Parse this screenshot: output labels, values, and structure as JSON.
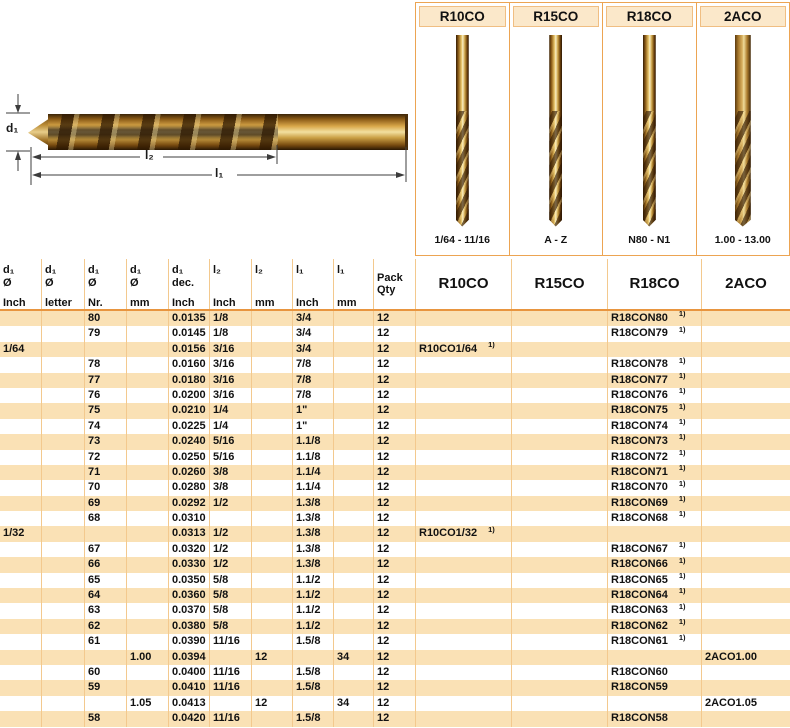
{
  "diagram": {
    "d1_label": "d₁",
    "l2_label": "l₂",
    "l1_label": "l₁"
  },
  "products": [
    {
      "name": "R10CO",
      "range": "1/64 - 11/16"
    },
    {
      "name": "R15CO",
      "range": "A - Z"
    },
    {
      "name": "R18CO",
      "range": "N80 - N1"
    },
    {
      "name": "2ACO",
      "range": "1.00 - 13.00"
    }
  ],
  "table": {
    "note_marker": "1)",
    "dim_headers": [
      {
        "lines": [
          "d₁",
          "Ø",
          "Inch"
        ]
      },
      {
        "lines": [
          "d₁",
          "Ø",
          "letter"
        ]
      },
      {
        "lines": [
          "d₁",
          "Ø",
          "Nr."
        ]
      },
      {
        "lines": [
          "d₁",
          "Ø",
          "mm"
        ]
      },
      {
        "lines": [
          "d₁",
          "dec.",
          "Inch"
        ]
      },
      {
        "lines": [
          "l₂",
          "",
          "Inch"
        ]
      },
      {
        "lines": [
          "l₂",
          "",
          "mm"
        ]
      },
      {
        "lines": [
          "l₁",
          "",
          "Inch"
        ]
      },
      {
        "lines": [
          "l₁",
          "",
          "mm"
        ]
      },
      {
        "lines": [
          "Pack",
          "Qty",
          ""
        ]
      }
    ],
    "product_headers": [
      "R10CO",
      "R15CO",
      "R18CO",
      "2ACO"
    ],
    "rows": [
      {
        "cells": [
          "",
          "",
          "80",
          "",
          "0.0135",
          "1/8",
          "",
          "3/4",
          "",
          "12",
          "",
          "",
          "R18CON80",
          ""
        ],
        "sup": 12
      },
      {
        "cells": [
          "",
          "",
          "79",
          "",
          "0.0145",
          "1/8",
          "",
          "3/4",
          "",
          "12",
          "",
          "",
          "R18CON79",
          ""
        ],
        "sup": 12
      },
      {
        "cells": [
          "1/64",
          "",
          "",
          "",
          "0.0156",
          "3/16",
          "",
          "3/4",
          "",
          "12",
          "R10CO1/64",
          "",
          "",
          ""
        ],
        "sup": 10
      },
      {
        "cells": [
          "",
          "",
          "78",
          "",
          "0.0160",
          "3/16",
          "",
          "7/8",
          "",
          "12",
          "",
          "",
          "R18CON78",
          ""
        ],
        "sup": 12
      },
      {
        "cells": [
          "",
          "",
          "77",
          "",
          "0.0180",
          "3/16",
          "",
          "7/8",
          "",
          "12",
          "",
          "",
          "R18CON77",
          ""
        ],
        "sup": 12
      },
      {
        "cells": [
          "",
          "",
          "76",
          "",
          "0.0200",
          "3/16",
          "",
          "7/8",
          "",
          "12",
          "",
          "",
          "R18CON76",
          ""
        ],
        "sup": 12
      },
      {
        "cells": [
          "",
          "",
          "75",
          "",
          "0.0210",
          "1/4",
          "",
          "1\"",
          "",
          "12",
          "",
          "",
          "R18CON75",
          ""
        ],
        "sup": 12
      },
      {
        "cells": [
          "",
          "",
          "74",
          "",
          "0.0225",
          "1/4",
          "",
          "1\"",
          "",
          "12",
          "",
          "",
          "R18CON74",
          ""
        ],
        "sup": 12
      },
      {
        "cells": [
          "",
          "",
          "73",
          "",
          "0.0240",
          "5/16",
          "",
          "1.1/8",
          "",
          "12",
          "",
          "",
          "R18CON73",
          ""
        ],
        "sup": 12
      },
      {
        "cells": [
          "",
          "",
          "72",
          "",
          "0.0250",
          "5/16",
          "",
          "1.1/8",
          "",
          "12",
          "",
          "",
          "R18CON72",
          ""
        ],
        "sup": 12
      },
      {
        "cells": [
          "",
          "",
          "71",
          "",
          "0.0260",
          "3/8",
          "",
          "1.1/4",
          "",
          "12",
          "",
          "",
          "R18CON71",
          ""
        ],
        "sup": 12
      },
      {
        "cells": [
          "",
          "",
          "70",
          "",
          "0.0280",
          "3/8",
          "",
          "1.1/4",
          "",
          "12",
          "",
          "",
          "R18CON70",
          ""
        ],
        "sup": 12
      },
      {
        "cells": [
          "",
          "",
          "69",
          "",
          "0.0292",
          "1/2",
          "",
          "1.3/8",
          "",
          "12",
          "",
          "",
          "R18CON69",
          ""
        ],
        "sup": 12
      },
      {
        "cells": [
          "",
          "",
          "68",
          "",
          "0.0310",
          "",
          "",
          "1.3/8",
          "",
          "12",
          "",
          "",
          "R18CON68",
          ""
        ],
        "sup": 12
      },
      {
        "cells": [
          "1/32",
          "",
          "",
          "",
          "0.0313",
          "1/2",
          "",
          "1.3/8",
          "",
          "12",
          "R10CO1/32",
          "",
          "",
          ""
        ],
        "sup": 10
      },
      {
        "cells": [
          "",
          "",
          "67",
          "",
          "0.0320",
          "1/2",
          "",
          "1.3/8",
          "",
          "12",
          "",
          "",
          "R18CON67",
          ""
        ],
        "sup": 12
      },
      {
        "cells": [
          "",
          "",
          "66",
          "",
          "0.0330",
          "1/2",
          "",
          "1.3/8",
          "",
          "12",
          "",
          "",
          "R18CON66",
          ""
        ],
        "sup": 12
      },
      {
        "cells": [
          "",
          "",
          "65",
          "",
          "0.0350",
          "5/8",
          "",
          "1.1/2",
          "",
          "12",
          "",
          "",
          "R18CON65",
          ""
        ],
        "sup": 12
      },
      {
        "cells": [
          "",
          "",
          "64",
          "",
          "0.0360",
          "5/8",
          "",
          "1.1/2",
          "",
          "12",
          "",
          "",
          "R18CON64",
          ""
        ],
        "sup": 12
      },
      {
        "cells": [
          "",
          "",
          "63",
          "",
          "0.0370",
          "5/8",
          "",
          "1.1/2",
          "",
          "12",
          "",
          "",
          "R18CON63",
          ""
        ],
        "sup": 12
      },
      {
        "cells": [
          "",
          "",
          "62",
          "",
          "0.0380",
          "5/8",
          "",
          "1.1/2",
          "",
          "12",
          "",
          "",
          "R18CON62",
          ""
        ],
        "sup": 12
      },
      {
        "cells": [
          "",
          "",
          "61",
          "",
          "0.0390",
          "11/16",
          "",
          "1.5/8",
          "",
          "12",
          "",
          "",
          "R18CON61",
          ""
        ],
        "sup": 12
      },
      {
        "cells": [
          "",
          "",
          "",
          "1.00",
          "0.0394",
          "",
          "12",
          "",
          "34",
          "12",
          "",
          "",
          "",
          "2ACO1.00"
        ],
        "sup": -1
      },
      {
        "cells": [
          "",
          "",
          "60",
          "",
          "0.0400",
          "11/16",
          "",
          "1.5/8",
          "",
          "12",
          "",
          "",
          "R18CON60",
          ""
        ],
        "sup": -1
      },
      {
        "cells": [
          "",
          "",
          "59",
          "",
          "0.0410",
          "11/16",
          "",
          "1.5/8",
          "",
          "12",
          "",
          "",
          "R18CON59",
          ""
        ],
        "sup": -1
      },
      {
        "cells": [
          "",
          "",
          "",
          "1.05",
          "0.0413",
          "",
          "12",
          "",
          "34",
          "12",
          "",
          "",
          "",
          "2ACO1.05"
        ],
        "sup": -1
      },
      {
        "cells": [
          "",
          "",
          "58",
          "",
          "0.0420",
          "11/16",
          "",
          "1.5/8",
          "",
          "12",
          "",
          "",
          "R18CON58",
          ""
        ],
        "sup": -1
      }
    ]
  }
}
